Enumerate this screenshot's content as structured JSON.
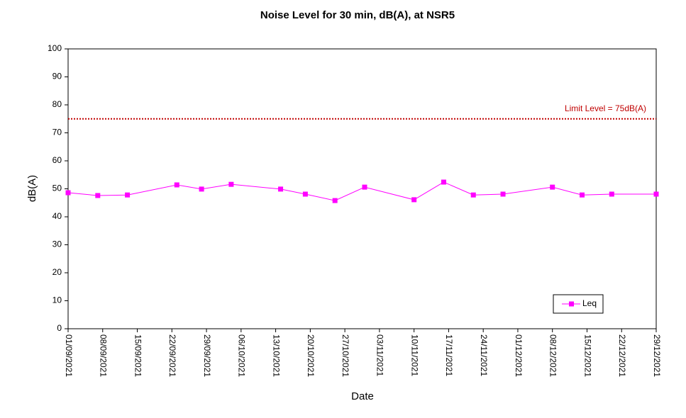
{
  "chart_data": {
    "type": "line",
    "title": "Noise Level for 30 min, dB(A), at NSR5",
    "x_label": "Date",
    "y_label": "dB(A)",
    "x": [
      "01/09/2021",
      "07/09/2021",
      "13/09/2021",
      "23/09/2021",
      "28/09/2021",
      "04/10/2021",
      "14/10/2021",
      "19/10/2021",
      "25/10/2021",
      "31/10/2021",
      "10/11/2021",
      "16/11/2021",
      "22/11/2021",
      "28/11/2021",
      "08/12/2021",
      "14/12/2021",
      "20/12/2021",
      "29/12/2021"
    ],
    "series": [
      {
        "name": "Leq",
        "color": "#ff00ff",
        "values": [
          48.6,
          47.6,
          47.8,
          51.4,
          49.9,
          51.6,
          49.9,
          48.1,
          45.8,
          50.6,
          46.1,
          52.4,
          47.8,
          48.1,
          50.6,
          47.8,
          48.1,
          48.1
        ]
      }
    ],
    "xlim": [
      "01/09/2021",
      "29/12/2021"
    ],
    "xticks": [
      "01/09/2021",
      "08/09/2021",
      "15/09/2021",
      "22/09/2021",
      "29/09/2021",
      "06/10/2021",
      "13/10/2021",
      "20/10/2021",
      "27/10/2021",
      "03/11/2021",
      "10/11/2021",
      "17/11/2021",
      "24/11/2021",
      "01/12/2021",
      "08/12/2021",
      "15/12/2021",
      "22/12/2021",
      "29/12/2021"
    ],
    "ylim": [
      0,
      100
    ],
    "yticks": [
      0,
      10,
      20,
      30,
      40,
      50,
      60,
      70,
      80,
      90,
      100
    ],
    "limit": {
      "value": 75,
      "label": "Limit Level = 75dB(A)",
      "color": "#c00000"
    },
    "legend": "lower right",
    "grid": false
  }
}
